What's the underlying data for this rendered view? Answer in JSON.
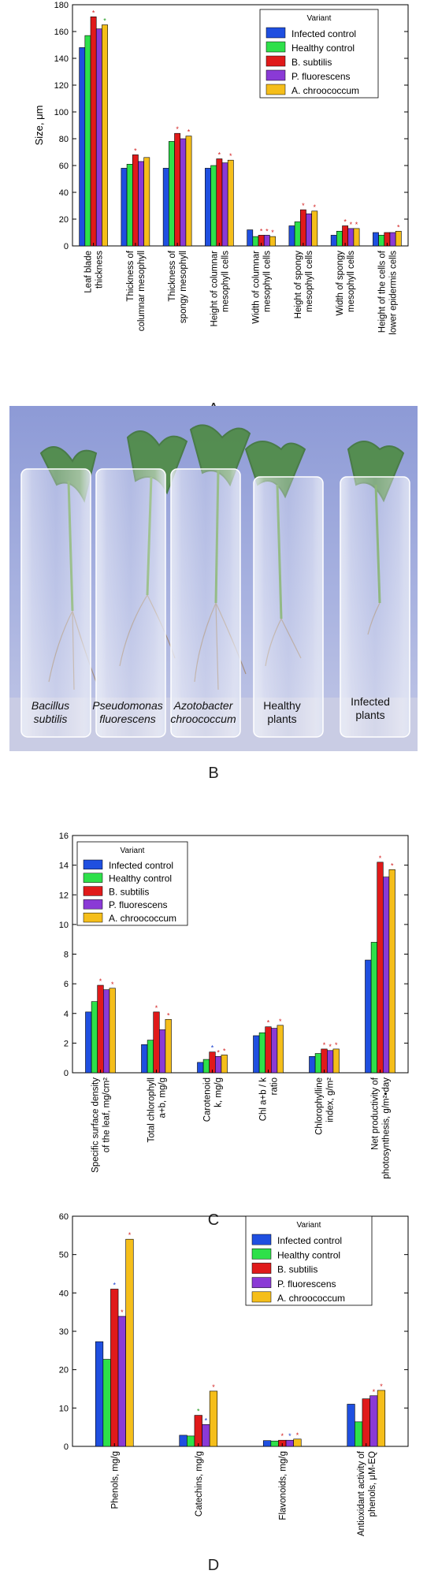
{
  "colors": {
    "Infected control": "#1f4fe0",
    "Healthy control": "#2ee04a",
    "B. subtilis": "#e01a1a",
    "P. fluorescens": "#8a3ad6",
    "A. chroococcum": "#f5be1a",
    "star_red": "#d42020",
    "star_green": "#1a9a1a",
    "star_blue": "#1a40d0"
  },
  "legend": {
    "title": "Variant",
    "entries": [
      "Infected control",
      "Healthy control",
      "B. subtilis",
      "P. fluorescens",
      "A. chroococcum"
    ]
  },
  "panel_letters": {
    "a": "A",
    "b": "B",
    "c": "C",
    "d": "D"
  },
  "photo": {
    "labels": [
      {
        "lines": [
          "Bacillus",
          "subtilis"
        ],
        "italic": true
      },
      {
        "lines": [
          "Pseudomonas",
          "fluorescens"
        ],
        "italic": true
      },
      {
        "lines": [
          "Azotobacter",
          "chroococcum"
        ],
        "italic": true
      },
      {
        "lines": [
          "Healthy",
          "plants"
        ],
        "italic": false
      },
      {
        "lines": [
          "Infected",
          "plants"
        ],
        "italic": false
      }
    ]
  },
  "chart_data": [
    {
      "id": "A",
      "type": "bar",
      "ylabel": "Size, μm",
      "ylim": [
        0,
        180
      ],
      "yticks": [
        0,
        20,
        40,
        60,
        80,
        100,
        120,
        140,
        160,
        180
      ],
      "legend_position": "top-right",
      "categories": [
        [
          "Leaf blade",
          "thickness"
        ],
        [
          "Thickness of",
          "columnar mesophyll"
        ],
        [
          "Thickness of",
          "spongy mesophyll"
        ],
        [
          "Height of columnar",
          "mesophyll cells"
        ],
        [
          "Width of columnar",
          "mesophyll cells"
        ],
        [
          "Height of spongy",
          "mesophyll cells"
        ],
        [
          "Width of spongy",
          "mesophyll cells"
        ],
        [
          "Height of the cells of",
          "lower epidermis cells"
        ]
      ],
      "series": [
        {
          "name": "Infected control",
          "values": [
            148,
            58,
            58,
            58,
            12,
            15,
            8,
            10
          ]
        },
        {
          "name": "Healthy control",
          "values": [
            157,
            61,
            78,
            60,
            7,
            18,
            11,
            8
          ]
        },
        {
          "name": "B. subtilis",
          "values": [
            171,
            68,
            84,
            65,
            8,
            27,
            15,
            10
          ]
        },
        {
          "name": "P. fluorescens",
          "values": [
            162,
            63,
            80,
            62,
            8,
            24,
            13,
            10
          ]
        },
        {
          "name": "A. chroococcum",
          "values": [
            165,
            66,
            82,
            64,
            7,
            26,
            13,
            11
          ]
        }
      ],
      "stars": [
        [
          0,
          2,
          "star_red"
        ],
        [
          0,
          4,
          "star_green"
        ],
        [
          1,
          2,
          "star_red"
        ],
        [
          2,
          2,
          "star_red"
        ],
        [
          2,
          4,
          "star_red"
        ],
        [
          3,
          2,
          "star_red"
        ],
        [
          3,
          4,
          "star_red"
        ],
        [
          4,
          2,
          "star_red"
        ],
        [
          4,
          3,
          "star_red"
        ],
        [
          4,
          4,
          "star_red"
        ],
        [
          5,
          2,
          "star_red"
        ],
        [
          5,
          4,
          "star_red"
        ],
        [
          6,
          2,
          "star_red"
        ],
        [
          6,
          3,
          "star_red"
        ],
        [
          6,
          4,
          "star_red"
        ],
        [
          7,
          4,
          "star_red"
        ]
      ]
    },
    {
      "id": "C",
      "type": "bar",
      "ylabel": "",
      "ylim": [
        0,
        16
      ],
      "yticks": [
        0,
        2,
        4,
        6,
        8,
        10,
        12,
        14,
        16
      ],
      "legend_position": "top-left",
      "categories": [
        [
          "Specific surface density",
          "of the leaf, mg/cm²"
        ],
        [
          "Total chlorophyll",
          "a+b, mg/g"
        ],
        [
          "Carotenoid",
          "k, mg/g"
        ],
        [
          "Chl a+b / k",
          "ratio"
        ],
        [
          "Chlorophylline",
          "index, g/m²"
        ],
        [
          "Net productivity of",
          "photosynthesis, g/m²•day"
        ]
      ],
      "series": [
        {
          "name": "Infected control",
          "values": [
            4.1,
            1.9,
            0.7,
            2.5,
            1.1,
            7.6
          ]
        },
        {
          "name": "Healthy control",
          "values": [
            4.8,
            2.2,
            0.9,
            2.7,
            1.3,
            8.8
          ]
        },
        {
          "name": "B. subtilis",
          "values": [
            5.9,
            4.1,
            1.4,
            3.1,
            1.6,
            14.2
          ]
        },
        {
          "name": "P. fluorescens",
          "values": [
            5.6,
            2.9,
            1.1,
            3.0,
            1.5,
            13.2
          ]
        },
        {
          "name": "A. chroococcum",
          "values": [
            5.7,
            3.6,
            1.2,
            3.2,
            1.6,
            13.7
          ]
        }
      ],
      "stars": [
        [
          0,
          2,
          "star_red"
        ],
        [
          0,
          4,
          "star_red"
        ],
        [
          1,
          2,
          "star_red"
        ],
        [
          1,
          4,
          "star_red"
        ],
        [
          2,
          2,
          "star_blue"
        ],
        [
          2,
          3,
          "star_red"
        ],
        [
          2,
          4,
          "star_red"
        ],
        [
          3,
          2,
          "star_red"
        ],
        [
          3,
          4,
          "star_red"
        ],
        [
          4,
          2,
          "star_red"
        ],
        [
          4,
          3,
          "star_red"
        ],
        [
          4,
          4,
          "star_red"
        ],
        [
          5,
          2,
          "star_red"
        ],
        [
          5,
          4,
          "star_red"
        ]
      ]
    },
    {
      "id": "D",
      "type": "bar",
      "ylabel": "",
      "ylim": [
        0,
        60
      ],
      "yticks": [
        0,
        10,
        20,
        30,
        40,
        50,
        60
      ],
      "legend_position": "top-right",
      "categories": [
        [
          "Phenols, mg/g"
        ],
        [
          "Catechins, mg/g"
        ],
        [
          "Flavonoids, mg/g"
        ],
        [
          "Antioxidant activity of",
          "phenols, μM-EQ"
        ]
      ],
      "series": [
        {
          "name": "Infected control",
          "values": [
            27.3,
            2.9,
            1.5,
            11.0
          ]
        },
        {
          "name": "Healthy control",
          "values": [
            22.7,
            2.7,
            1.4,
            6.4
          ]
        },
        {
          "name": "B. subtilis",
          "values": [
            41.0,
            8.1,
            1.6,
            12.4
          ]
        },
        {
          "name": "P. fluorescens",
          "values": [
            33.9,
            5.7,
            1.6,
            13.2
          ]
        },
        {
          "name": "A. chroococcum",
          "values": [
            54.0,
            14.4,
            1.9,
            14.6
          ]
        }
      ],
      "stars": [
        [
          0,
          2,
          "star_blue"
        ],
        [
          0,
          3,
          "star_red"
        ],
        [
          0,
          4,
          "star_red"
        ],
        [
          1,
          2,
          "star_green"
        ],
        [
          1,
          3,
          "star_blue"
        ],
        [
          1,
          4,
          "star_red"
        ],
        [
          2,
          2,
          "star_red"
        ],
        [
          2,
          3,
          "star_blue"
        ],
        [
          2,
          4,
          "star_red"
        ],
        [
          3,
          3,
          "star_red"
        ],
        [
          3,
          4,
          "star_red"
        ]
      ]
    }
  ]
}
